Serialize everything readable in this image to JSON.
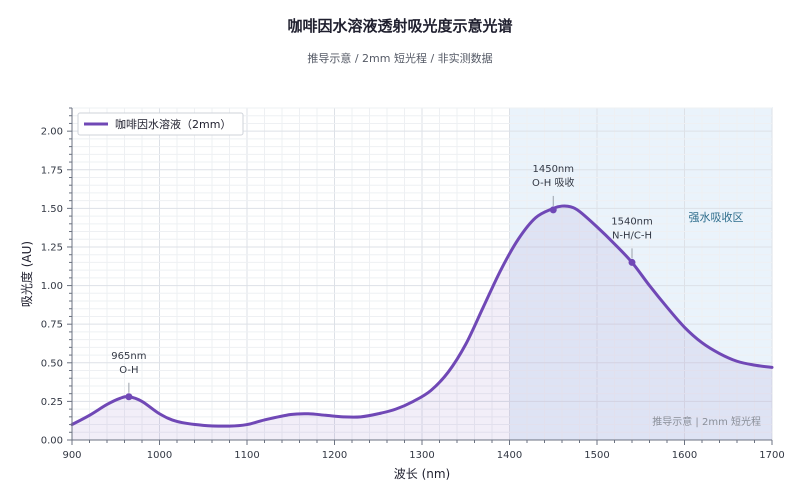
{
  "chart_data": {
    "type": "line",
    "title": "咖啡因水溶液透射吸光度示意光谱",
    "subtitle": "推导示意 / 2mm 短光程 / 非实测数据",
    "xlabel": "波长 (nm)",
    "ylabel": "吸光度 (AU)",
    "xlim": [
      900,
      1700
    ],
    "ylim": [
      0,
      2.15
    ],
    "xticks": [
      900,
      1000,
      1100,
      1200,
      1300,
      1400,
      1500,
      1600,
      1700
    ],
    "yticks": [
      0,
      0.25,
      0.5,
      0.75,
      1.0,
      1.25,
      1.5,
      1.75,
      2.0
    ],
    "ytick_labels": [
      "0.00",
      "0.25",
      "0.50",
      "0.75",
      "1.00",
      "1.25",
      "1.50",
      "1.75",
      "2.00"
    ],
    "grid": true,
    "legend_position": "top-left",
    "series": [
      {
        "name": "咖啡因水溶液（2mm）",
        "color": "#7048b6",
        "x": [
          900,
          920,
          940,
          955,
          965,
          980,
          1000,
          1020,
          1050,
          1080,
          1100,
          1120,
          1150,
          1170,
          1190,
          1210,
          1230,
          1250,
          1270,
          1290,
          1310,
          1330,
          1350,
          1370,
          1390,
          1410,
          1430,
          1450,
          1460,
          1470,
          1480,
          1500,
          1520,
          1540,
          1560,
          1580,
          1600,
          1620,
          1640,
          1660,
          1680,
          1700
        ],
        "y": [
          0.1,
          0.16,
          0.23,
          0.27,
          0.28,
          0.25,
          0.17,
          0.12,
          0.095,
          0.09,
          0.1,
          0.13,
          0.165,
          0.17,
          0.16,
          0.15,
          0.15,
          0.17,
          0.2,
          0.25,
          0.32,
          0.44,
          0.62,
          0.86,
          1.1,
          1.3,
          1.44,
          1.5,
          1.515,
          1.51,
          1.48,
          1.38,
          1.27,
          1.15,
          1.0,
          0.86,
          0.73,
          0.63,
          0.56,
          0.51,
          0.485,
          0.47
        ]
      }
    ],
    "highlight_region": {
      "from": 1400,
      "to": 1700,
      "label": "强水吸收区"
    },
    "annotations": [
      {
        "x": 965,
        "y": 0.28,
        "line1": "965nm",
        "line2": "O-H"
      },
      {
        "x": 1450,
        "y": 1.49,
        "line1": "1450nm",
        "line2": "O-H 吸收"
      },
      {
        "x": 1540,
        "y": 1.15,
        "line1": "1540nm",
        "line2": "N-H/C-H"
      }
    ],
    "watermark": "推导示意 | 2mm 短光程"
  }
}
